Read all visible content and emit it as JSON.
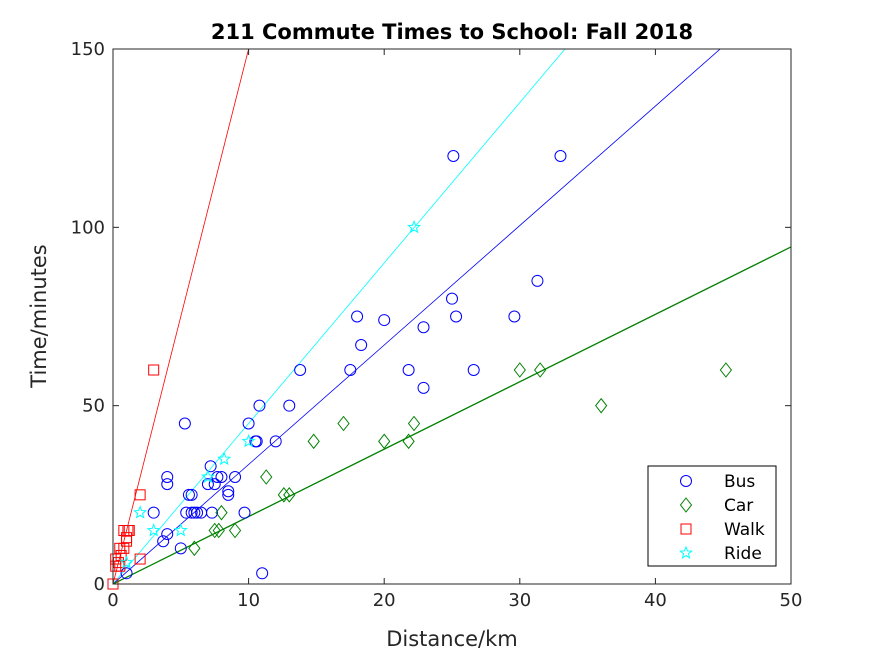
{
  "chart_data": {
    "type": "scatter",
    "title": "211 Commute Times to School: Fall 2018",
    "xlabel": "Distance/km",
    "ylabel": "Time/minutes",
    "xlim": [
      0,
      50
    ],
    "ylim": [
      0,
      150
    ],
    "xticks": [
      0,
      10,
      20,
      30,
      40,
      50
    ],
    "yticks": [
      0,
      50,
      100,
      150
    ],
    "grid": false,
    "legend_position": "bottom-right",
    "series": [
      {
        "name": "Bus",
        "marker": "circle",
        "color": "#0000ff",
        "points": [
          [
            1,
            3
          ],
          [
            3,
            20
          ],
          [
            3.7,
            12
          ],
          [
            4,
            14
          ],
          [
            4,
            30
          ],
          [
            4,
            28
          ],
          [
            5,
            10
          ],
          [
            5.3,
            45
          ],
          [
            5.4,
            20
          ],
          [
            5.6,
            25
          ],
          [
            5.8,
            25
          ],
          [
            5.8,
            20
          ],
          [
            6,
            20
          ],
          [
            6.2,
            20
          ],
          [
            6.5,
            20
          ],
          [
            7,
            28
          ],
          [
            7.2,
            33
          ],
          [
            7.3,
            20
          ],
          [
            7.5,
            28
          ],
          [
            7.7,
            30
          ],
          [
            8,
            30
          ],
          [
            8.5,
            26
          ],
          [
            8.5,
            25
          ],
          [
            9,
            30
          ],
          [
            9.7,
            20
          ],
          [
            10,
            45
          ],
          [
            10.5,
            40
          ],
          [
            10.6,
            40
          ],
          [
            10.8,
            50
          ],
          [
            11,
            3
          ],
          [
            12,
            40
          ],
          [
            13,
            50
          ],
          [
            13.8,
            60
          ],
          [
            17.5,
            60
          ],
          [
            18,
            75
          ],
          [
            18.3,
            67
          ],
          [
            20,
            74
          ],
          [
            21.8,
            60
          ],
          [
            22.9,
            72
          ],
          [
            22.9,
            55
          ],
          [
            25,
            80
          ],
          [
            25.1,
            120
          ],
          [
            25.3,
            75
          ],
          [
            26.6,
            60
          ],
          [
            29.6,
            75
          ],
          [
            31.3,
            85
          ],
          [
            33,
            120
          ]
        ]
      },
      {
        "name": "Car",
        "marker": "diamond",
        "color": "#008000",
        "points": [
          [
            6,
            10
          ],
          [
            7.5,
            15
          ],
          [
            7.8,
            15
          ],
          [
            8,
            20
          ],
          [
            9,
            15
          ],
          [
            11.3,
            30
          ],
          [
            12.6,
            25
          ],
          [
            13,
            25
          ],
          [
            14.8,
            40
          ],
          [
            17,
            45
          ],
          [
            20,
            40
          ],
          [
            21.8,
            40
          ],
          [
            22.2,
            45
          ],
          [
            30,
            60
          ],
          [
            31.5,
            60
          ],
          [
            36,
            50
          ],
          [
            45.2,
            60
          ]
        ]
      },
      {
        "name": "Walk",
        "marker": "square",
        "color": "#ff0000",
        "points": [
          [
            0,
            0
          ],
          [
            0.2,
            5
          ],
          [
            0.2,
            7
          ],
          [
            0.4,
            6
          ],
          [
            0.5,
            5
          ],
          [
            0.5,
            10
          ],
          [
            0.6,
            8
          ],
          [
            0.8,
            15
          ],
          [
            0.8,
            10
          ],
          [
            1,
            12
          ],
          [
            1,
            13
          ],
          [
            1.1,
            15
          ],
          [
            1.2,
            15
          ],
          [
            2,
            7
          ],
          [
            2,
            25
          ],
          [
            3,
            60
          ]
        ]
      },
      {
        "name": "Ride",
        "marker": "star",
        "color": "#00ffff",
        "points": [
          [
            1,
            6
          ],
          [
            2,
            20
          ],
          [
            3,
            15
          ],
          [
            5,
            15
          ],
          [
            7,
            30
          ],
          [
            8.2,
            35
          ],
          [
            10,
            40
          ],
          [
            22.2,
            100
          ]
        ]
      }
    ],
    "trend_lines": [
      {
        "color": "#ff0000",
        "slope": 15
      },
      {
        "color": "#00ffff",
        "slope": 4.5
      },
      {
        "color": "#0000ff",
        "slope": 3.35
      },
      {
        "color": "#008000",
        "slope": 1.89
      }
    ]
  }
}
